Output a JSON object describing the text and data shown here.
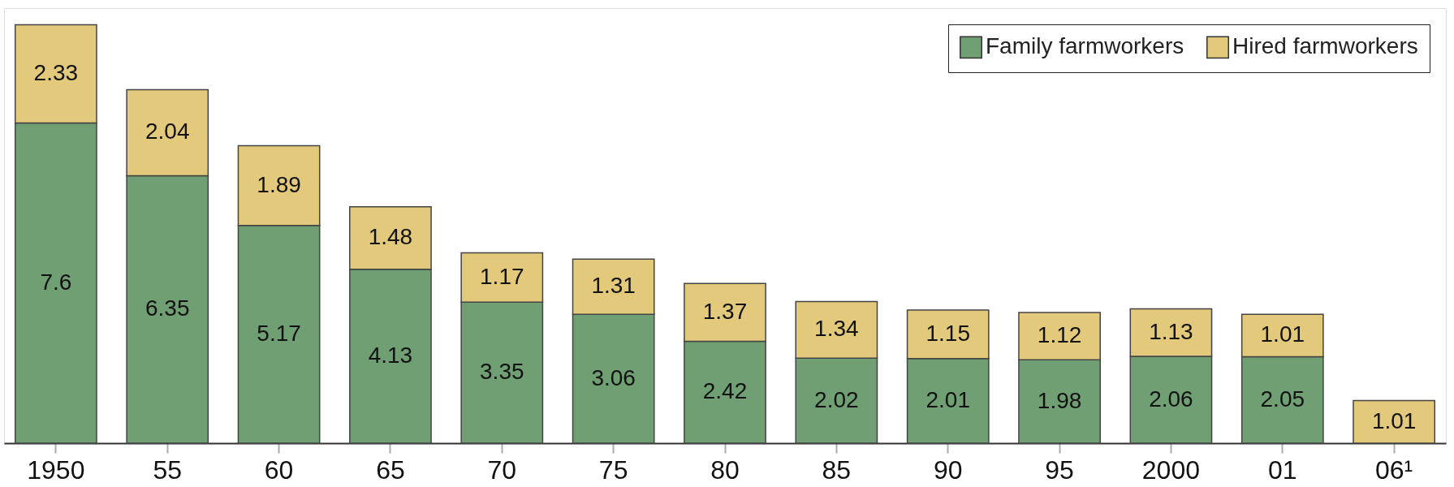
{
  "chart_data": {
    "type": "bar",
    "stacked": true,
    "data_labels": true,
    "legend": "top right",
    "grid": false,
    "categories": [
      "1950",
      "55",
      "60",
      "65",
      "70",
      "75",
      "80",
      "85",
      "90",
      "95",
      "2000",
      "01",
      "06¹"
    ],
    "series": [
      {
        "name": "Family farmworkers",
        "color": "#6f9f72",
        "values": [
          7.6,
          6.35,
          5.17,
          4.13,
          3.35,
          3.06,
          2.42,
          2.02,
          2.01,
          1.98,
          2.06,
          2.05,
          null
        ]
      },
      {
        "name": "Hired farmworkers",
        "color": "#e3c97c",
        "values": [
          2.33,
          2.04,
          1.89,
          1.48,
          1.17,
          1.31,
          1.37,
          1.34,
          1.15,
          1.12,
          1.13,
          1.01,
          1.01
        ]
      }
    ]
  }
}
